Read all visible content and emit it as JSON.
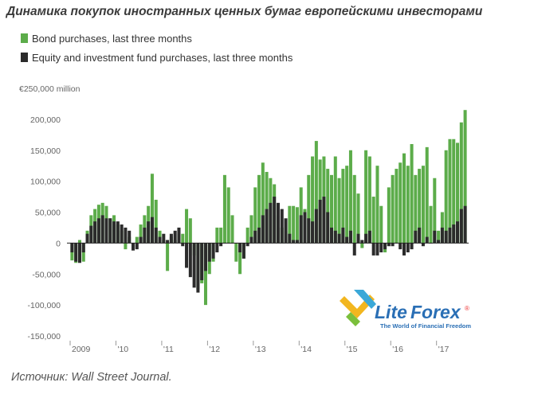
{
  "title": "Динамика покупок иностранных ценных бумаг европейскими инвесторами",
  "source": "Источник: Wall Street Journal.",
  "watermark": {
    "brand_lite": "Lite",
    "brand_forex": "Forex",
    "registered": "®",
    "tagline": "The World of Financial Freedom"
  },
  "colors": {
    "bond": "#5cac4a",
    "equity": "#2b2b2b",
    "axis_zero": "#222222",
    "tick": "#666666"
  },
  "chart_data": {
    "type": "bar",
    "subtype": "overlapping",
    "title": "",
    "ylabel": "€250,000 million",
    "ylim": [
      -150000,
      250000
    ],
    "y_ticks": [
      {
        "value": 250000,
        "label": "€250,000 million"
      },
      {
        "value": 200000,
        "label": "200,000"
      },
      {
        "value": 150000,
        "label": "150,000"
      },
      {
        "value": 100000,
        "label": "100,000"
      },
      {
        "value": 50000,
        "label": "50,000"
      },
      {
        "value": 0,
        "label": "0"
      },
      {
        "value": -50000,
        "label": "-50,000"
      },
      {
        "value": -100000,
        "label": "-100,000"
      },
      {
        "value": -150000,
        "label": "-150,000"
      }
    ],
    "x_ticks": [
      {
        "index": 0,
        "label": "2009"
      },
      {
        "index": 12,
        "label": "'10"
      },
      {
        "index": 24,
        "label": "'11"
      },
      {
        "index": 36,
        "label": "'12"
      },
      {
        "index": 48,
        "label": "'13"
      },
      {
        "index": 60,
        "label": "'14"
      },
      {
        "index": 72,
        "label": "'15"
      },
      {
        "index": 84,
        "label": "'16"
      },
      {
        "index": 96,
        "label": "'17"
      }
    ],
    "legend_position": "top-left",
    "series": [
      {
        "name": "Bond purchases, last three months",
        "values": [
          -28000,
          -32000,
          5000,
          -30000,
          20000,
          45000,
          55000,
          62000,
          65000,
          60000,
          40000,
          45000,
          30000,
          20000,
          -10000,
          10000,
          0,
          10000,
          30000,
          45000,
          60000,
          112000,
          70000,
          20000,
          5000,
          -45000,
          10000,
          5000,
          15000,
          15000,
          55000,
          40000,
          -20000,
          -75000,
          -65000,
          -100000,
          -50000,
          -30000,
          25000,
          25000,
          110000,
          90000,
          45000,
          -30000,
          -50000,
          -25000,
          25000,
          45000,
          90000,
          110000,
          130000,
          115000,
          105000,
          95000,
          45000,
          25000,
          20000,
          60000,
          60000,
          58000,
          90000,
          55000,
          110000,
          140000,
          165000,
          135000,
          140000,
          120000,
          110000,
          140000,
          105000,
          120000,
          125000,
          150000,
          110000,
          80000,
          -8000,
          150000,
          140000,
          75000,
          125000,
          60000,
          -15000,
          90000,
          110000,
          120000,
          130000,
          145000,
          125000,
          160000,
          110000,
          120000,
          125000,
          155000,
          60000,
          105000,
          20000,
          50000,
          150000,
          168000,
          168000,
          162000,
          195000,
          215000
        ],
        "color": "#5cac4a"
      },
      {
        "name": "Equity and investment fund purchases, last three months",
        "values": [
          -15000,
          -30000,
          -32000,
          -15000,
          15000,
          28000,
          35000,
          40000,
          45000,
          40000,
          40000,
          35000,
          35000,
          30000,
          25000,
          20000,
          -12000,
          -10000,
          10000,
          25000,
          35000,
          42000,
          25000,
          10000,
          15000,
          5000,
          15000,
          20000,
          25000,
          -5000,
          -40000,
          -55000,
          -72000,
          -80000,
          -60000,
          -45000,
          -30000,
          -25000,
          -15000,
          -5000,
          0,
          0,
          0,
          0,
          -15000,
          -25000,
          -5000,
          10000,
          20000,
          25000,
          45000,
          55000,
          65000,
          75000,
          65000,
          55000,
          40000,
          15000,
          5000,
          5000,
          45000,
          50000,
          40000,
          35000,
          55000,
          70000,
          75000,
          50000,
          25000,
          20000,
          15000,
          25000,
          10000,
          20000,
          -20000,
          15000,
          5000,
          15000,
          20000,
          -20000,
          -20000,
          -15000,
          -10000,
          -5000,
          -5000,
          0,
          -10000,
          -20000,
          -15000,
          -10000,
          20000,
          25000,
          -5000,
          10000,
          0,
          20000,
          5000,
          25000,
          20000,
          25000,
          30000,
          35000,
          55000,
          60000
        ],
        "color": "#2b2b2b"
      }
    ]
  }
}
